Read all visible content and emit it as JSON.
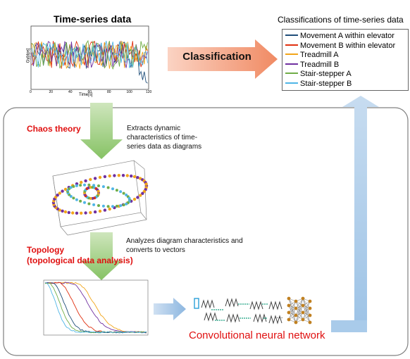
{
  "time_series": {
    "title": "Time-series data",
    "xlabel": "Time[s]",
    "ylabel": "Gy[dps]",
    "x_ticks": [
      "0",
      "20",
      "40",
      "60",
      "80",
      "100",
      "120"
    ]
  },
  "classifications": {
    "title": "Classifications of time-series data",
    "items": [
      {
        "label": "Movement A within elevator",
        "color": "#1f4e79"
      },
      {
        "label": "Movement B within elevator",
        "color": "#e03010"
      },
      {
        "label": "Treadmill A",
        "color": "#f2a51a"
      },
      {
        "label": "Treadmill B",
        "color": "#7030a0"
      },
      {
        "label": "Stair-stepper A",
        "color": "#70ad47"
      },
      {
        "label": "Stair-stepper B",
        "color": "#4fb5e6"
      }
    ]
  },
  "classification_arrow": {
    "label": "Classification",
    "color": "#f4a58a"
  },
  "chaos": {
    "label": "Chaos theory",
    "note": "Extracts dynamic characteristics of time-series data as diagrams"
  },
  "topology": {
    "label_line1": "Topology",
    "label_line2": "(topological data analysis)",
    "note": "Analyzes diagram characteristics and converts to vectors"
  },
  "cnn": {
    "label": "Convolutional neural network"
  },
  "colors": {
    "green_arrow": "#8cc66e",
    "blue_arrow": "#9dc3e6",
    "panel_border": "#7f7f7f"
  }
}
